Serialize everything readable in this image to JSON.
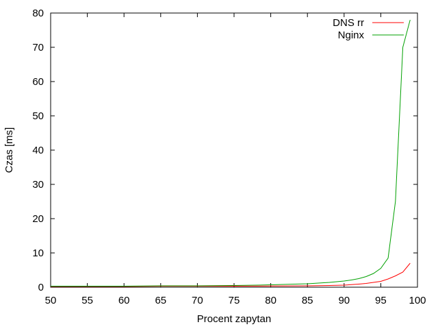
{
  "chart_data": {
    "type": "line",
    "title": "",
    "xlabel": "Procent zapytan",
    "ylabel": "Czas [ms]",
    "xlim": [
      50,
      100
    ],
    "ylim": [
      0,
      80
    ],
    "x_ticks": [
      "50",
      "55",
      "60",
      "65",
      "70",
      "75",
      "80",
      "85",
      "90",
      "95",
      "100"
    ],
    "y_ticks": [
      "0",
      "10",
      "20",
      "30",
      "40",
      "50",
      "60",
      "70",
      "80"
    ],
    "x_tick_values": [
      50,
      55,
      60,
      65,
      70,
      75,
      80,
      85,
      90,
      95,
      100
    ],
    "y_tick_values": [
      0,
      10,
      20,
      30,
      40,
      50,
      60,
      70,
      80
    ],
    "legend_position": "top-right",
    "series": [
      {
        "name": "DNS rr",
        "color": "#ff0000",
        "x": [
          50,
          55,
          60,
          65,
          70,
          75,
          80,
          85,
          88,
          90,
          91,
          92,
          93,
          94,
          95,
          96,
          97,
          98,
          99
        ],
        "values": [
          0.2,
          0.2,
          0.2,
          0.3,
          0.3,
          0.3,
          0.35,
          0.4,
          0.5,
          0.6,
          0.75,
          0.9,
          1.1,
          1.4,
          1.7,
          2.4,
          3.3,
          4.4,
          7.0
        ]
      },
      {
        "name": "Nginx",
        "color": "#00a000",
        "x": [
          50,
          55,
          60,
          65,
          70,
          75,
          78,
          80,
          85,
          88,
          90,
          91,
          92,
          93,
          94,
          95,
          96,
          97,
          98,
          99
        ],
        "values": [
          0.3,
          0.3,
          0.3,
          0.4,
          0.4,
          0.5,
          0.6,
          0.7,
          1.0,
          1.4,
          1.8,
          2.1,
          2.5,
          3.1,
          4.0,
          5.5,
          8.5,
          25.0,
          70.0,
          78.0
        ]
      }
    ]
  }
}
